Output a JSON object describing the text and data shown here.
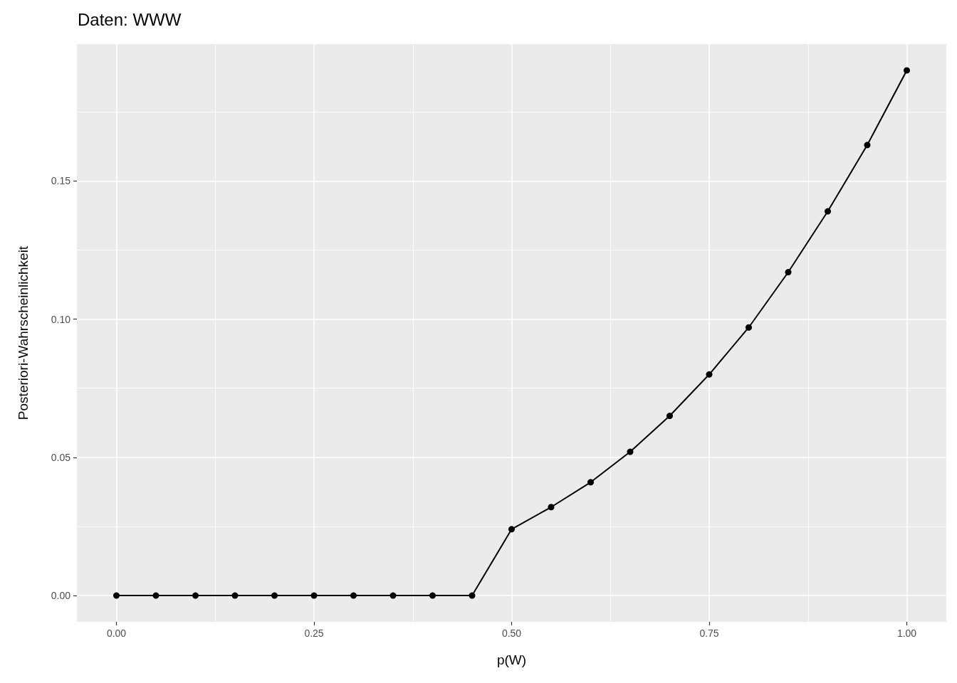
{
  "chart_data": {
    "type": "line",
    "title": "Daten: WWW",
    "xlabel": "p(W)",
    "ylabel": "Posteriori-Wahrscheinlichkeit",
    "x": [
      0,
      0.05,
      0.1,
      0.15,
      0.2,
      0.25,
      0.3,
      0.35,
      0.4,
      0.45,
      0.5,
      0.55,
      0.6,
      0.65,
      0.7,
      0.75,
      0.8,
      0.85,
      0.9,
      0.95,
      1
    ],
    "values": [
      0,
      0,
      0,
      0,
      0,
      0,
      0,
      0,
      0,
      0,
      0.024,
      0.032,
      0.041,
      0.052,
      0.065,
      0.08,
      0.097,
      0.117,
      0.139,
      0.163,
      0.19
    ],
    "color": "#000000",
    "marker": "circle",
    "line_style": "solid",
    "xlim": [
      -0.05,
      1.05
    ],
    "ylim": [
      -0.0095,
      0.1995
    ],
    "xticks": [
      {
        "value": 0,
        "label": "0.00"
      },
      {
        "value": 0.125,
        "label": null
      },
      {
        "value": 0.25,
        "label": "0.25"
      },
      {
        "value": 0.375,
        "label": null
      },
      {
        "value": 0.5,
        "label": "0.50"
      },
      {
        "value": 0.625,
        "label": null
      },
      {
        "value": 0.75,
        "label": "0.75"
      },
      {
        "value": 0.875,
        "label": null
      },
      {
        "value": 1,
        "label": "1.00"
      }
    ],
    "yticks": [
      {
        "value": 0,
        "label": "0.00"
      },
      {
        "value": 0.025,
        "label": null
      },
      {
        "value": 0.05,
        "label": "0.05"
      },
      {
        "value": 0.075,
        "label": null
      },
      {
        "value": 0.1,
        "label": "0.10"
      },
      {
        "value": 0.125,
        "label": null
      },
      {
        "value": 0.15,
        "label": "0.15"
      },
      {
        "value": 0.175,
        "label": null
      }
    ],
    "grid": true
  }
}
